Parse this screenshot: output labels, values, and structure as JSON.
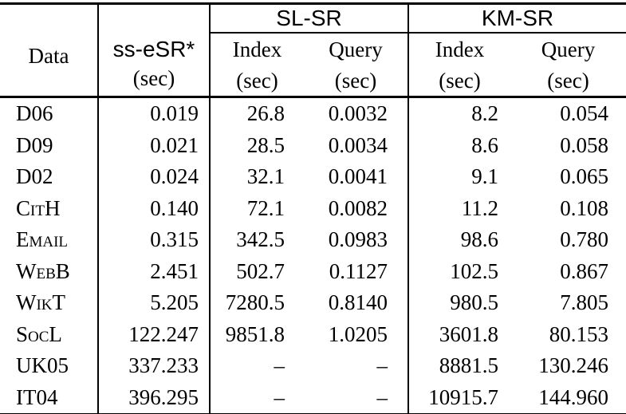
{
  "table": {
    "group_headers": {
      "sl": "SL-SR",
      "km": "KM-SR"
    },
    "headers": {
      "data": "Data",
      "method": "ss-eSR*",
      "unit": "(sec)",
      "index": "Index",
      "query": "Query"
    },
    "rows": [
      {
        "name": "D06",
        "ss_esr": "0.019",
        "sl_index": "26.8",
        "sl_query": "0.0032",
        "km_index": "8.2",
        "km_query": "0.054"
      },
      {
        "name": "D09",
        "ss_esr": "0.021",
        "sl_index": "28.5",
        "sl_query": "0.0034",
        "km_index": "8.6",
        "km_query": "0.058"
      },
      {
        "name": "D02",
        "ss_esr": "0.024",
        "sl_index": "32.1",
        "sl_query": "0.0041",
        "km_index": "9.1",
        "km_query": "0.065"
      },
      {
        "name": "CitH",
        "ss_esr": "0.140",
        "sl_index": "72.1",
        "sl_query": "0.0082",
        "km_index": "11.2",
        "km_query": "0.108"
      },
      {
        "name": "Email",
        "ss_esr": "0.315",
        "sl_index": "342.5",
        "sl_query": "0.0983",
        "km_index": "98.6",
        "km_query": "0.780"
      },
      {
        "name": "WebB",
        "ss_esr": "2.451",
        "sl_index": "502.7",
        "sl_query": "0.1127",
        "km_index": "102.5",
        "km_query": "0.867"
      },
      {
        "name": "WikT",
        "ss_esr": "5.205",
        "sl_index": "7280.5",
        "sl_query": "0.8140",
        "km_index": "980.5",
        "km_query": "7.805"
      },
      {
        "name": "SocL",
        "ss_esr": "122.247",
        "sl_index": "9851.8",
        "sl_query": "1.0205",
        "km_index": "3601.8",
        "km_query": "80.153"
      },
      {
        "name": "UK05",
        "ss_esr": "337.233",
        "sl_index": "–",
        "sl_query": "–",
        "km_index": "8881.5",
        "km_query": "130.246"
      },
      {
        "name": "IT04",
        "ss_esr": "396.295",
        "sl_index": "–",
        "sl_query": "–",
        "km_index": "10915.7",
        "km_query": "144.960"
      }
    ]
  }
}
